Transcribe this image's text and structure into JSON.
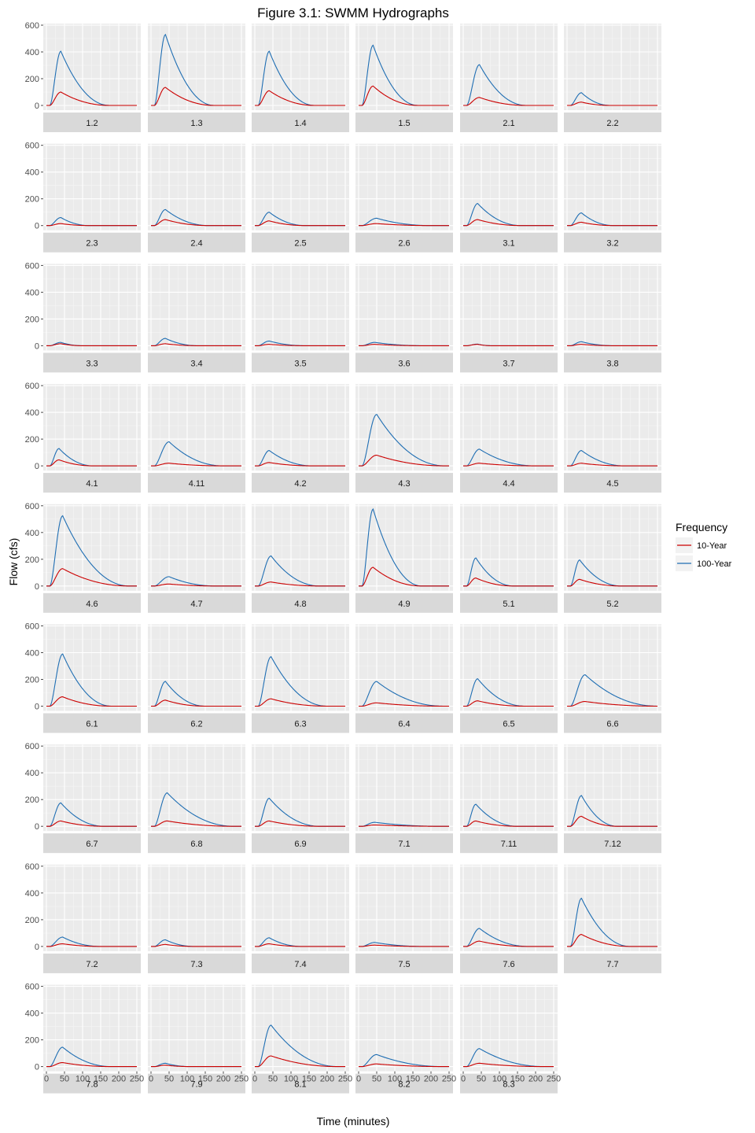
{
  "chart_data": {
    "type": "line",
    "title": "Figure 3.1: SWMM Hydrographs",
    "xlabel": "Time (minutes)",
    "ylabel": "Flow (cfs)",
    "xlim": [
      0,
      250
    ],
    "ylim": [
      0,
      600
    ],
    "x_ticks": [
      0,
      50,
      100,
      150,
      200,
      250
    ],
    "y_ticks": [
      0,
      200,
      400,
      600
    ],
    "grid": true,
    "legend": {
      "title": "Frequency",
      "position": "right",
      "entries": [
        {
          "name": "10-Year",
          "color": "#cc0000"
        },
        {
          "name": "100-Year",
          "color": "#1f6eb3"
        }
      ]
    },
    "hydrograph_shape": "rise starts ~x=10, peak at listed time, exponential-like recession to ~0 at listed end time",
    "columns": 6,
    "panels": [
      {
        "label": "1.2",
        "y10": 100,
        "y100": 405,
        "peak": 40,
        "end": 175
      },
      {
        "label": "1.3",
        "y10": 135,
        "y100": 530,
        "peak": 40,
        "end": 175
      },
      {
        "label": "1.4",
        "y10": 110,
        "y100": 405,
        "peak": 40,
        "end": 165
      },
      {
        "label": "1.5",
        "y10": 145,
        "y100": 450,
        "peak": 40,
        "end": 165
      },
      {
        "label": "2.1",
        "y10": 60,
        "y100": 305,
        "peak": 45,
        "end": 175
      },
      {
        "label": "2.2",
        "y10": 25,
        "y100": 95,
        "peak": 40,
        "end": 120
      },
      {
        "label": "2.3",
        "y10": 15,
        "y100": 60,
        "peak": 40,
        "end": 120
      },
      {
        "label": "2.4",
        "y10": 45,
        "y100": 120,
        "peak": 40,
        "end": 160
      },
      {
        "label": "2.5",
        "y10": 35,
        "y100": 100,
        "peak": 40,
        "end": 140
      },
      {
        "label": "2.6",
        "y10": 15,
        "y100": 55,
        "peak": 50,
        "end": 200
      },
      {
        "label": "3.1",
        "y10": 45,
        "y100": 165,
        "peak": 40,
        "end": 160
      },
      {
        "label": "3.2",
        "y10": 25,
        "y100": 95,
        "peak": 40,
        "end": 130
      },
      {
        "label": "3.3",
        "y10": 15,
        "y100": 25,
        "peak": 40,
        "end": 100
      },
      {
        "label": "3.4",
        "y10": 15,
        "y100": 55,
        "peak": 40,
        "end": 130
      },
      {
        "label": "3.5",
        "y10": 10,
        "y100": 35,
        "peak": 40,
        "end": 140
      },
      {
        "label": "3.6",
        "y10": 10,
        "y100": 25,
        "peak": 45,
        "end": 180
      },
      {
        "label": "3.7",
        "y10": 10,
        "y100": 12,
        "peak": 40,
        "end": 80
      },
      {
        "label": "3.8",
        "y10": 10,
        "y100": 30,
        "peak": 40,
        "end": 130
      },
      {
        "label": "4.1",
        "y10": 45,
        "y100": 130,
        "peak": 35,
        "end": 130
      },
      {
        "label": "4.11",
        "y10": 20,
        "y100": 180,
        "peak": 50,
        "end": 200
      },
      {
        "label": "4.2",
        "y10": 25,
        "y100": 115,
        "peak": 40,
        "end": 160
      },
      {
        "label": "4.3",
        "y10": 80,
        "y100": 385,
        "peak": 50,
        "end": 240
      },
      {
        "label": "4.4",
        "y10": 20,
        "y100": 125,
        "peak": 45,
        "end": 200
      },
      {
        "label": "4.5",
        "y10": 20,
        "y100": 115,
        "peak": 40,
        "end": 160
      },
      {
        "label": "4.6",
        "y10": 130,
        "y100": 525,
        "peak": 45,
        "end": 230
      },
      {
        "label": "4.7",
        "y10": 15,
        "y100": 70,
        "peak": 50,
        "end": 180
      },
      {
        "label": "4.8",
        "y10": 30,
        "y100": 225,
        "peak": 45,
        "end": 180
      },
      {
        "label": "4.9",
        "y10": 140,
        "y100": 575,
        "peak": 40,
        "end": 175
      },
      {
        "label": "5.1",
        "y10": 60,
        "y100": 210,
        "peak": 35,
        "end": 140
      },
      {
        "label": "5.2",
        "y10": 50,
        "y100": 195,
        "peak": 35,
        "end": 150
      },
      {
        "label": "6.1",
        "y10": 70,
        "y100": 390,
        "peak": 45,
        "end": 180
      },
      {
        "label": "6.2",
        "y10": 45,
        "y100": 185,
        "peak": 40,
        "end": 150
      },
      {
        "label": "6.3",
        "y10": 55,
        "y100": 370,
        "peak": 45,
        "end": 200
      },
      {
        "label": "6.4",
        "y10": 25,
        "y100": 185,
        "peak": 50,
        "end": 235
      },
      {
        "label": "6.5",
        "y10": 40,
        "y100": 205,
        "peak": 40,
        "end": 170
      },
      {
        "label": "6.6",
        "y10": 35,
        "y100": 235,
        "peak": 50,
        "end": 250
      },
      {
        "label": "6.7",
        "y10": 40,
        "y100": 175,
        "peak": 40,
        "end": 160
      },
      {
        "label": "6.8",
        "y10": 40,
        "y100": 250,
        "peak": 45,
        "end": 230
      },
      {
        "label": "6.9",
        "y10": 40,
        "y100": 210,
        "peak": 40,
        "end": 180
      },
      {
        "label": "7.1",
        "y10": 10,
        "y100": 30,
        "peak": 45,
        "end": 230
      },
      {
        "label": "7.11",
        "y10": 40,
        "y100": 165,
        "peak": 35,
        "end": 150
      },
      {
        "label": "7.12",
        "y10": 75,
        "y100": 230,
        "peak": 40,
        "end": 140
      },
      {
        "label": "7.2",
        "y10": 20,
        "y100": 70,
        "peak": 45,
        "end": 150
      },
      {
        "label": "7.3",
        "y10": 15,
        "y100": 50,
        "peak": 40,
        "end": 120
      },
      {
        "label": "7.4",
        "y10": 20,
        "y100": 65,
        "peak": 40,
        "end": 130
      },
      {
        "label": "7.5",
        "y10": 10,
        "y100": 30,
        "peak": 45,
        "end": 180
      },
      {
        "label": "7.6",
        "y10": 40,
        "y100": 135,
        "peak": 45,
        "end": 180
      },
      {
        "label": "7.7",
        "y10": 90,
        "y100": 360,
        "peak": 40,
        "end": 175
      },
      {
        "label": "7.8",
        "y10": 30,
        "y100": 145,
        "peak": 45,
        "end": 180
      },
      {
        "label": "7.9",
        "y10": 10,
        "y100": 25,
        "peak": 40,
        "end": 110
      },
      {
        "label": "8.1",
        "y10": 80,
        "y100": 310,
        "peak": 45,
        "end": 230
      },
      {
        "label": "8.2",
        "y10": 20,
        "y100": 90,
        "peak": 50,
        "end": 235
      },
      {
        "label": "8.3",
        "y10": 25,
        "y100": 135,
        "peak": 45,
        "end": 225
      }
    ]
  }
}
